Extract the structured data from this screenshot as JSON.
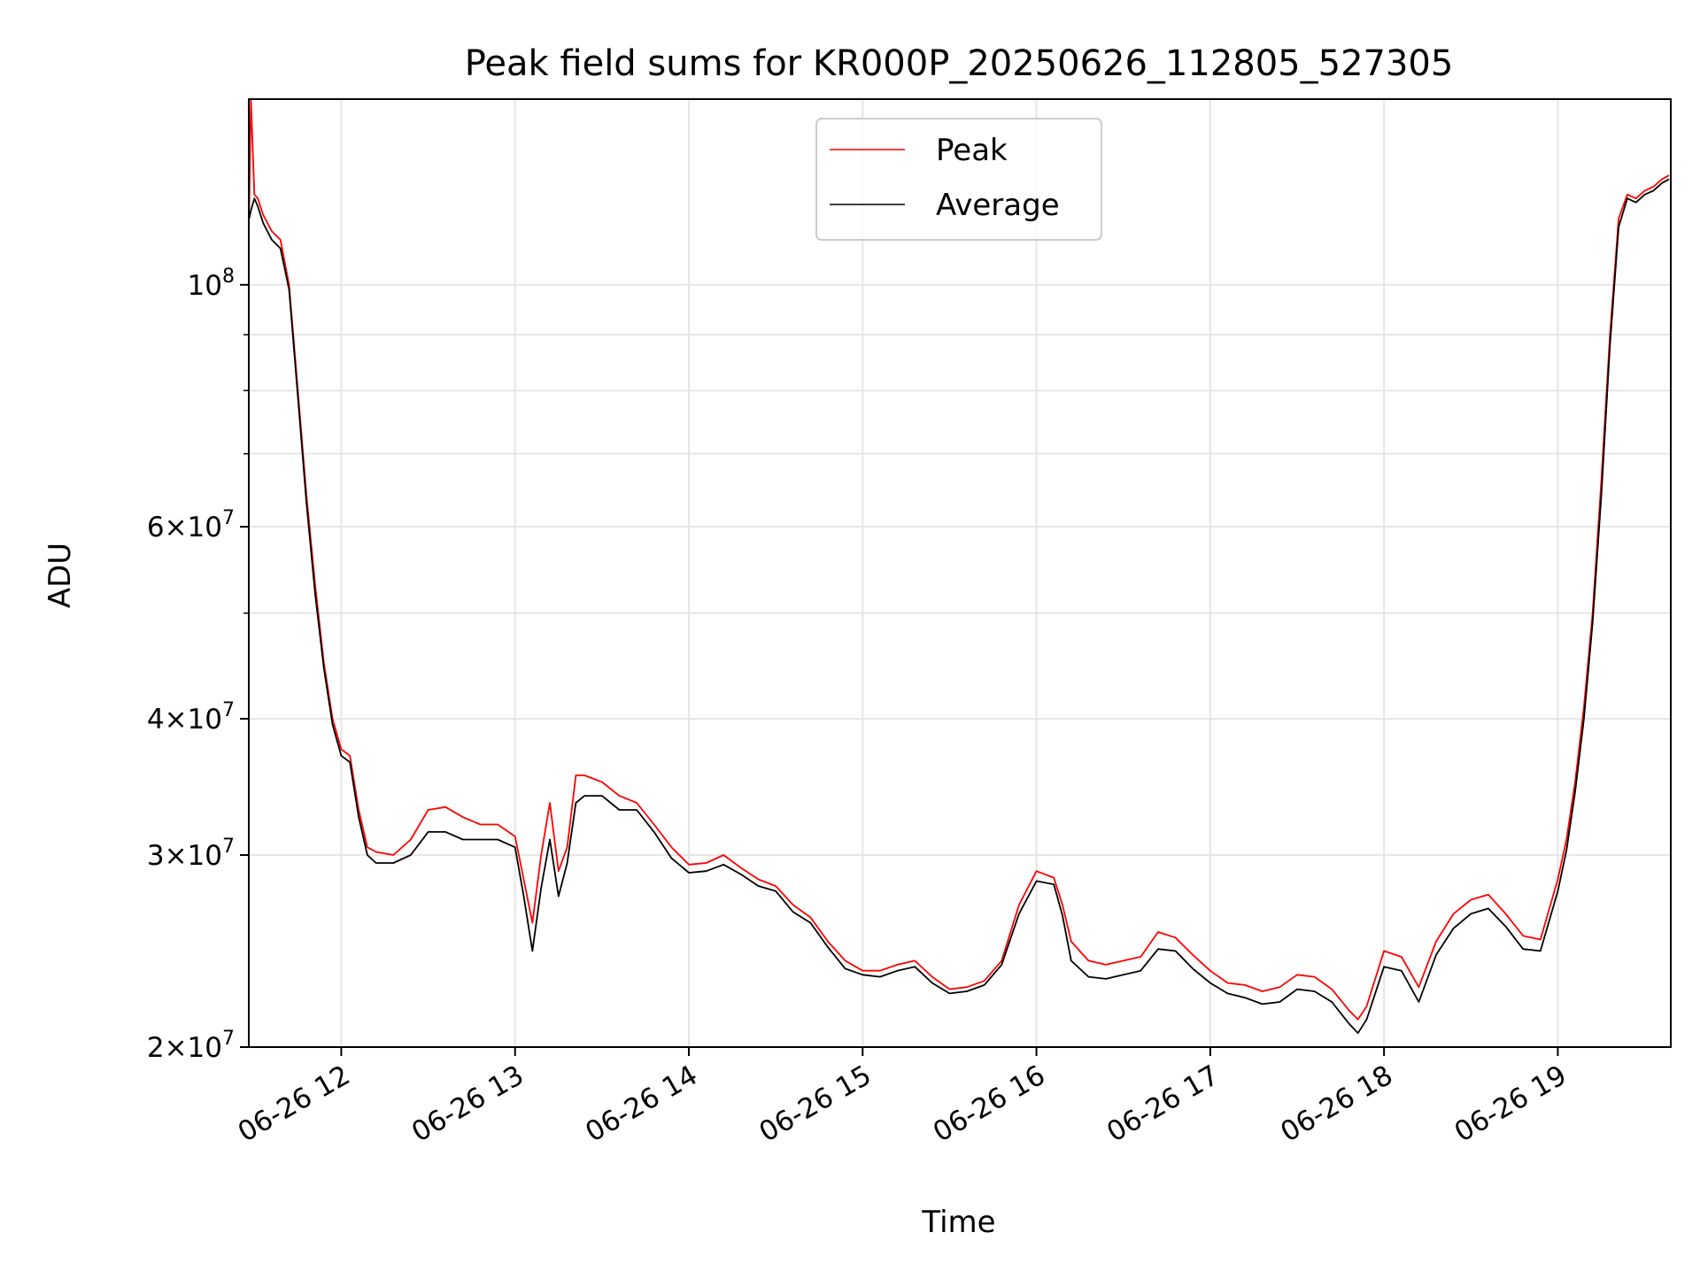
{
  "chart_data": {
    "type": "line",
    "title": "Peak field sums for KR000P_20250626_112805_527305",
    "xlabel": "Time",
    "ylabel": "ADU",
    "x_ticks": [
      "06-26 12",
      "06-26 13",
      "06-26 14",
      "06-26 15",
      "06-26 16",
      "06-26 17",
      "06-26 18",
      "06-26 19"
    ],
    "x_tick_hours": [
      12,
      13,
      14,
      15,
      16,
      17,
      18,
      19
    ],
    "xlim_hours": [
      11.468,
      19.65
    ],
    "y_scale": "log",
    "ylim": [
      20000000,
      148000000
    ],
    "y_major_ticks": [
      {
        "value": 20000000,
        "mantissa": "2",
        "exp": "7"
      },
      {
        "value": 30000000,
        "mantissa": "3",
        "exp": "7"
      },
      {
        "value": 40000000,
        "mantissa": "4",
        "exp": "7"
      },
      {
        "value": 60000000,
        "mantissa": "6",
        "exp": "7"
      },
      {
        "value": 100000000,
        "mantissa": "",
        "exp": "8"
      }
    ],
    "y_minor_ticks": [
      50000000,
      70000000,
      80000000,
      90000000
    ],
    "grid": true,
    "legend_position": "top-center",
    "series": [
      {
        "name": "Peak",
        "color": "#ff0000",
        "x_hours": [
          11.47,
          11.48,
          11.5,
          11.52,
          11.55,
          11.6,
          11.65,
          11.7,
          11.75,
          11.8,
          11.85,
          11.9,
          11.95,
          12.0,
          12.05,
          12.1,
          12.15,
          12.2,
          12.3,
          12.4,
          12.5,
          12.6,
          12.7,
          12.8,
          12.9,
          13.0,
          13.05,
          13.1,
          13.15,
          13.2,
          13.25,
          13.3,
          13.35,
          13.4,
          13.5,
          13.6,
          13.7,
          13.8,
          13.9,
          14.0,
          14.1,
          14.2,
          14.3,
          14.4,
          14.5,
          14.6,
          14.7,
          14.8,
          14.9,
          15.0,
          15.1,
          15.2,
          15.3,
          15.4,
          15.5,
          15.6,
          15.7,
          15.8,
          15.9,
          16.0,
          16.1,
          16.15,
          16.2,
          16.3,
          16.4,
          16.5,
          16.6,
          16.7,
          16.8,
          16.9,
          17.0,
          17.1,
          17.2,
          17.3,
          17.4,
          17.5,
          17.6,
          17.7,
          17.8,
          17.85,
          17.9,
          18.0,
          18.1,
          18.2,
          18.3,
          18.4,
          18.5,
          18.6,
          18.7,
          18.8,
          18.9,
          19.0,
          19.05,
          19.1,
          19.15,
          19.2,
          19.25,
          19.3,
          19.35,
          19.4,
          19.45,
          19.5,
          19.55,
          19.6,
          19.64
        ],
        "values": [
          117000000,
          148000000,
          121000000,
          120000000,
          116000000,
          112000000,
          110000000,
          100000000,
          80000000,
          64000000,
          53000000,
          45000000,
          40000000,
          37500000,
          37000000,
          33000000,
          30500000,
          30200000,
          30000000,
          31000000,
          33000000,
          33200000,
          32500000,
          32000000,
          32000000,
          31200000,
          28500000,
          26000000,
          30000000,
          33500000,
          29000000,
          30500000,
          35500000,
          35500000,
          35000000,
          34000000,
          33500000,
          32000000,
          30500000,
          29400000,
          29500000,
          30000000,
          29200000,
          28500000,
          28100000,
          27000000,
          26300000,
          25000000,
          24000000,
          23500000,
          23500000,
          23800000,
          24000000,
          23200000,
          22600000,
          22700000,
          23000000,
          24000000,
          27000000,
          29000000,
          28600000,
          27000000,
          25000000,
          24000000,
          23800000,
          24000000,
          24200000,
          25500000,
          25200000,
          24300000,
          23500000,
          22900000,
          22800000,
          22500000,
          22700000,
          23300000,
          23200000,
          22600000,
          21600000,
          21200000,
          21800000,
          24500000,
          24200000,
          22700000,
          25000000,
          26500000,
          27300000,
          27600000,
          26500000,
          25300000,
          25100000,
          28500000,
          31000000,
          35000000,
          41000000,
          50000000,
          66000000,
          90000000,
          115000000,
          121000000,
          120000000,
          122000000,
          123000000,
          125000000,
          126000000
        ]
      },
      {
        "name": "Average",
        "color": "#000000",
        "x_hours": [
          11.47,
          11.48,
          11.5,
          11.52,
          11.55,
          11.6,
          11.65,
          11.7,
          11.75,
          11.8,
          11.85,
          11.9,
          11.95,
          12.0,
          12.05,
          12.1,
          12.15,
          12.2,
          12.3,
          12.4,
          12.5,
          12.6,
          12.7,
          12.8,
          12.9,
          13.0,
          13.05,
          13.1,
          13.15,
          13.2,
          13.25,
          13.3,
          13.35,
          13.4,
          13.5,
          13.6,
          13.7,
          13.8,
          13.9,
          14.0,
          14.1,
          14.2,
          14.3,
          14.4,
          14.5,
          14.6,
          14.7,
          14.8,
          14.9,
          15.0,
          15.1,
          15.2,
          15.3,
          15.4,
          15.5,
          15.6,
          15.7,
          15.8,
          15.9,
          16.0,
          16.1,
          16.15,
          16.2,
          16.3,
          16.4,
          16.5,
          16.6,
          16.7,
          16.8,
          16.9,
          17.0,
          17.1,
          17.2,
          17.3,
          17.4,
          17.5,
          17.6,
          17.7,
          17.8,
          17.85,
          17.9,
          18.0,
          18.1,
          18.2,
          18.3,
          18.4,
          18.5,
          18.6,
          18.7,
          18.8,
          18.9,
          19.0,
          19.05,
          19.1,
          19.15,
          19.2,
          19.25,
          19.3,
          19.35,
          19.4,
          19.45,
          19.5,
          19.55,
          19.6,
          19.64
        ],
        "values": [
          115000000,
          117000000,
          120000000,
          118000000,
          114000000,
          110000000,
          108000000,
          99000000,
          79000000,
          63000000,
          52000000,
          44500000,
          39500000,
          37000000,
          36500000,
          32500000,
          30000000,
          29500000,
          29500000,
          30000000,
          31500000,
          31500000,
          31000000,
          31000000,
          31000000,
          30500000,
          27500000,
          24500000,
          28000000,
          31000000,
          27500000,
          29500000,
          33500000,
          34000000,
          34000000,
          33000000,
          33000000,
          31500000,
          29800000,
          28900000,
          29000000,
          29400000,
          28800000,
          28100000,
          27800000,
          26600000,
          26000000,
          24700000,
          23600000,
          23300000,
          23200000,
          23500000,
          23700000,
          22900000,
          22400000,
          22500000,
          22800000,
          23800000,
          26500000,
          28400000,
          28200000,
          26400000,
          24000000,
          23200000,
          23100000,
          23300000,
          23500000,
          24600000,
          24500000,
          23600000,
          22900000,
          22400000,
          22200000,
          21900000,
          22000000,
          22600000,
          22500000,
          22000000,
          21000000,
          20600000,
          21200000,
          23700000,
          23500000,
          22000000,
          24300000,
          25700000,
          26500000,
          26800000,
          25800000,
          24600000,
          24500000,
          27800000,
          30300000,
          34300000,
          40000000,
          49000000,
          64000000,
          88000000,
          113000000,
          120000000,
          119000000,
          121000000,
          122000000,
          124000000,
          125000000
        ]
      }
    ]
  }
}
